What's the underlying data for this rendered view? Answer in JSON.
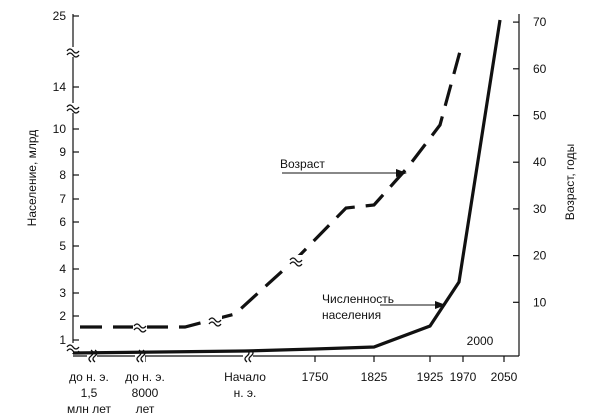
{
  "chart_data": {
    "type": "line",
    "left_axis": {
      "label": "Население, млрд",
      "ticks": [
        "1",
        "2",
        "3",
        "4",
        "5",
        "6",
        "7",
        "8",
        "9",
        "10",
        "14",
        "25"
      ],
      "break_marks": 3
    },
    "right_axis": {
      "label": "Возраст, годы",
      "ticks": [
        "10",
        "20",
        "30",
        "40",
        "50",
        "60",
        "70"
      ],
      "range": [
        0,
        75
      ]
    },
    "x_axis": {
      "labels": [
        {
          "lines": [
            "до н. э.",
            "1,5",
            "млн лет"
          ]
        },
        {
          "lines": [
            "до н. э.",
            "8000",
            "лет"
          ]
        },
        {
          "lines": [
            "Начало",
            "н. э."
          ]
        },
        {
          "lines": [
            "1750"
          ]
        },
        {
          "lines": [
            "1825"
          ]
        },
        {
          "lines": [
            "1925"
          ]
        },
        {
          "lines": [
            "1970"
          ]
        },
        {
          "lines": [
            "2050"
          ]
        }
      ],
      "inner_label": "2000"
    },
    "series": [
      {
        "name": "Численность населения",
        "axis": "left",
        "style": "solid",
        "x": [
          "до н. э. 1,5 млн лет",
          "до н. э. 8000 лет",
          "Начало н. э.",
          "1750",
          "1825",
          "1925",
          "1970",
          "2050"
        ],
        "values": [
          0.1,
          0.15,
          0.3,
          0.5,
          1,
          2,
          4,
          25
        ]
      },
      {
        "name": "Возраст",
        "axis": "right",
        "style": "dashed",
        "x": [
          "до н. э. 1,5 млн лет",
          "до н. э. 8000 лет",
          "Начало н. э.",
          "1750",
          "1825",
          "1925",
          "1970"
        ],
        "values": [
          7,
          7,
          7,
          25,
          35,
          48,
          68
        ]
      }
    ],
    "annotations": [
      "Возраст",
      "Численность населения"
    ]
  }
}
